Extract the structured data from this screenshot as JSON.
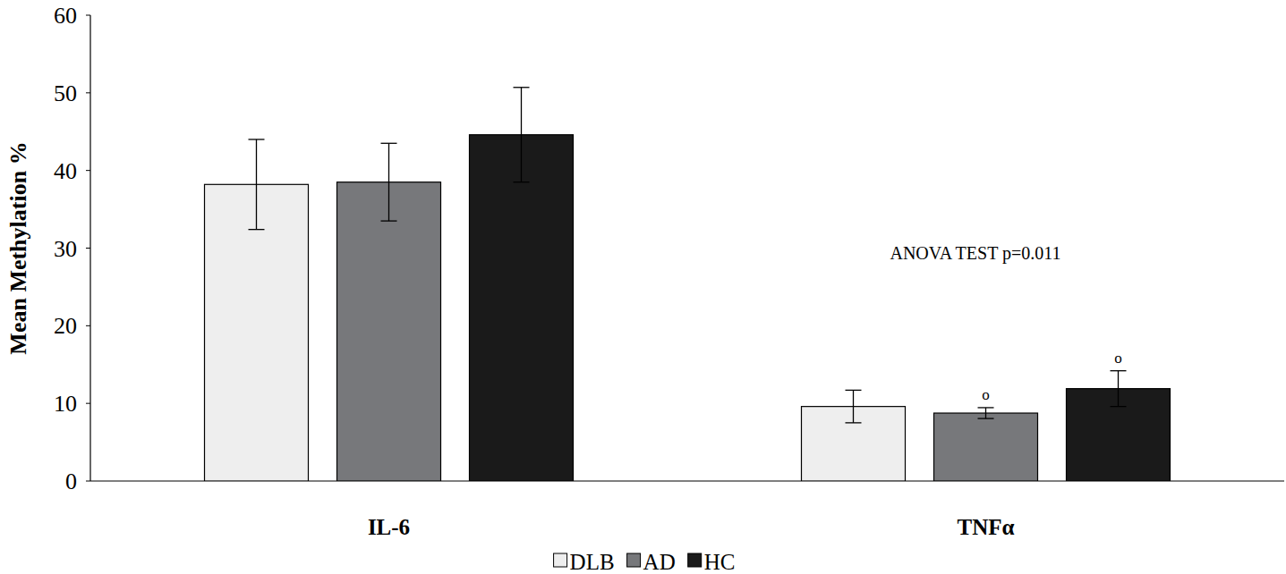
{
  "chart_data": {
    "type": "bar",
    "y_label": "Mean Methylation %",
    "categories": [
      "IL-6",
      "TNFα"
    ],
    "series": [
      {
        "name": "DLB",
        "color": "#eeeeee",
        "values": [
          38.2,
          9.6
        ],
        "errors": [
          5.8,
          2.1
        ],
        "symbols": [
          null,
          null
        ]
      },
      {
        "name": "AD",
        "color": "#77787b",
        "values": [
          38.5,
          8.75
        ],
        "errors": [
          5.0,
          0.7
        ],
        "symbols": [
          null,
          "o"
        ]
      },
      {
        "name": "HC",
        "color": "#1a1a1a",
        "values": [
          44.6,
          11.9
        ],
        "errors": [
          6.1,
          2.3
        ],
        "symbols": [
          null,
          "o"
        ]
      }
    ],
    "annotations": [
      "ANOVA TEST p=0.011"
    ],
    "ylim": [
      0,
      60
    ],
    "yticks": [
      0,
      10,
      20,
      30,
      40,
      50,
      60
    ],
    "grid": false,
    "legend": "bottom"
  }
}
